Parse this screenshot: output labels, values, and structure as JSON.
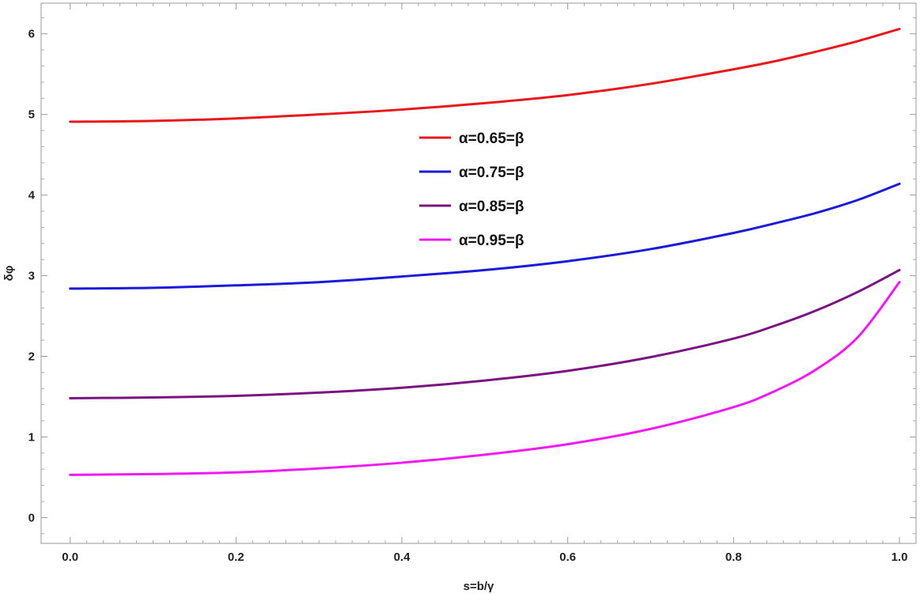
{
  "chart_data": {
    "type": "line",
    "title": "",
    "xlabel": "s=b/γ",
    "ylabel": "δφ",
    "xlim": [
      -0.035,
      1.02
    ],
    "ylim": [
      -0.32,
      6.38
    ],
    "xticks": [
      0.0,
      0.2,
      0.4,
      0.6,
      0.8,
      1.0
    ],
    "xtick_labels": [
      "0.0",
      "0.2",
      "0.4",
      "0.6",
      "0.8",
      "1.0"
    ],
    "yticks": [
      0,
      1,
      2,
      3,
      4,
      5,
      6
    ],
    "ytick_labels": [
      "0",
      "1",
      "2",
      "3",
      "4",
      "5",
      "6"
    ],
    "grid": false,
    "legend_position": "center",
    "x": [
      0.0,
      0.1,
      0.2,
      0.3,
      0.4,
      0.5,
      0.6,
      0.7,
      0.8,
      0.85,
      0.9,
      0.95,
      1.0
    ],
    "series": [
      {
        "name": "α=0.65=β",
        "color": "#e8171c",
        "values": [
          4.91,
          4.92,
          4.95,
          5.0,
          5.06,
          5.14,
          5.24,
          5.38,
          5.56,
          5.66,
          5.78,
          5.91,
          6.06
        ]
      },
      {
        "name": "α=0.75=β",
        "color": "#1a1ad8",
        "values": [
          2.84,
          2.85,
          2.88,
          2.92,
          2.99,
          3.07,
          3.18,
          3.33,
          3.53,
          3.65,
          3.78,
          3.94,
          4.14
        ]
      },
      {
        "name": "α=0.85=β",
        "color": "#7a1282",
        "values": [
          1.48,
          1.49,
          1.51,
          1.55,
          1.61,
          1.7,
          1.82,
          1.99,
          2.22,
          2.38,
          2.57,
          2.8,
          3.07
        ]
      },
      {
        "name": "α=0.95=β",
        "color": "#f01af0",
        "values": [
          0.53,
          0.54,
          0.56,
          0.61,
          0.68,
          0.78,
          0.91,
          1.1,
          1.37,
          1.57,
          1.84,
          2.24,
          2.92
        ]
      }
    ]
  }
}
